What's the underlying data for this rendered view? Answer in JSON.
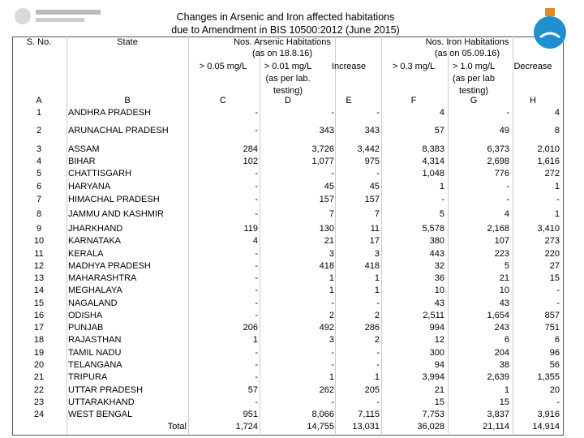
{
  "header": {
    "title_lines": [
      "Changes in Arsenic and Iron affected habitations",
      "due to Amendment in BIS 10500:2012 (June 2015)"
    ]
  },
  "table": {
    "headers": {
      "sno": "S. No.",
      "state": "State",
      "arsenic_group": [
        "Nos. Arsenic Habitations",
        "(as on 18.8.16)"
      ],
      "iron_group": [
        "Nos. Iron Habitations",
        "(as on 05.09.16)"
      ],
      "columns": [
        [
          "> 0.05 mg/L"
        ],
        [
          "> 0.01 mg/L",
          "(as per lab.",
          "testing)"
        ],
        [
          "Increase"
        ],
        [
          "> 0.3 mg/L"
        ],
        [
          "> 1.0 mg/L",
          "(as per lab",
          "testing)"
        ],
        [
          "Decrease"
        ]
      ]
    },
    "letters": [
      "A",
      "B",
      "C",
      "D",
      "E",
      "F",
      "G",
      "H"
    ],
    "rows": [
      [
        "1",
        "ANDHRA PRADESH",
        "-",
        "-",
        "-",
        "4",
        "-",
        "4"
      ],
      [
        "2",
        "ARUNACHAL PRADESH",
        "-",
        "343",
        "343",
        "57",
        "49",
        "8"
      ],
      [
        "3",
        "ASSAM",
        "284",
        "3,726",
        "3,442",
        "8,383",
        "6,373",
        "2,010"
      ],
      [
        "4",
        "BIHAR",
        "102",
        "1,077",
        "975",
        "4,314",
        "2,698",
        "1,616"
      ],
      [
        "5",
        "CHATTISGARH",
        "-",
        "-",
        "-",
        "1,048",
        "776",
        "272"
      ],
      [
        "6",
        "HARYANA",
        "-",
        "45",
        "45",
        "1",
        "-",
        "1"
      ],
      [
        "7",
        "HIMACHAL PRADESH",
        "-",
        "157",
        "157",
        "-",
        "-",
        "-"
      ],
      [
        "8",
        "JAMMU AND KASHMIR",
        "-",
        "7",
        "7",
        "5",
        "4",
        "1"
      ],
      [
        "9",
        "JHARKHAND",
        "119",
        "130",
        "11",
        "5,578",
        "2,168",
        "3,410"
      ],
      [
        "10",
        "KARNATAKA",
        "4",
        "21",
        "17",
        "380",
        "107",
        "273"
      ],
      [
        "11",
        "KERALA",
        "-",
        "3",
        "3",
        "443",
        "223",
        "220"
      ],
      [
        "12",
        "MADHYA PRADESH",
        "-",
        "418",
        "418",
        "32",
        "5",
        "27"
      ],
      [
        "13",
        "MAHARASHTRA",
        "-",
        "1",
        "1",
        "36",
        "21",
        "15"
      ],
      [
        "14",
        "MEGHALAYA",
        "-",
        "1",
        "1",
        "10",
        "10",
        "-"
      ],
      [
        "15",
        "NAGALAND",
        "-",
        "-",
        "-",
        "43",
        "43",
        "-"
      ],
      [
        "16",
        "ODISHA",
        "-",
        "2",
        "2",
        "2,511",
        "1,654",
        "857"
      ],
      [
        "17",
        "PUNJAB",
        "206",
        "492",
        "286",
        "994",
        "243",
        "751"
      ],
      [
        "18",
        "RAJASTHAN",
        "1",
        "3",
        "2",
        "12",
        "6",
        "6"
      ],
      [
        "19",
        "TAMIL NADU",
        "-",
        "-",
        "-",
        "300",
        "204",
        "96"
      ],
      [
        "20",
        "TELANGANA",
        "-",
        "-",
        "-",
        "94",
        "38",
        "56"
      ],
      [
        "21",
        "TRIPURA",
        "-",
        "1",
        "1",
        "3,994",
        "2,639",
        "1,355"
      ],
      [
        "22",
        "UTTAR PRADESH",
        "57",
        "262",
        "205",
        "21",
        "1",
        "20"
      ],
      [
        "23",
        "UTTARAKHAND",
        "-",
        "-",
        "-",
        "15",
        "15",
        "-"
      ],
      [
        "24",
        "WEST BENGAL",
        "951",
        "8,066",
        "7,115",
        "7,753",
        "3,837",
        "3,916"
      ]
    ],
    "total": {
      "label": "Total",
      "values": [
        "1,724",
        "14,755",
        "13,031",
        "36,028",
        "21,114",
        "14,914"
      ]
    }
  }
}
